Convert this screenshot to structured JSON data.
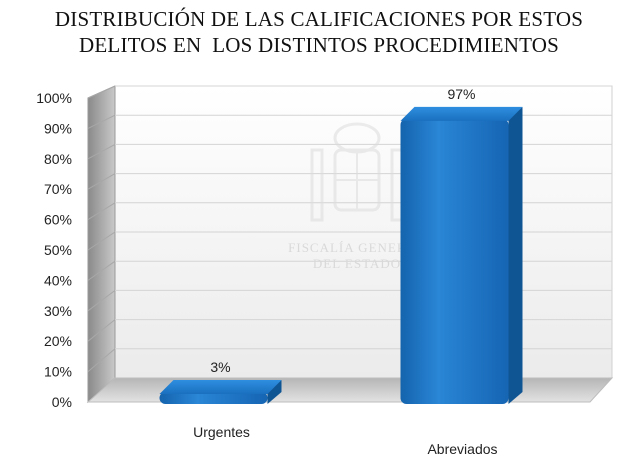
{
  "chart_data": {
    "type": "bar",
    "title_lines": [
      "DISTRIBUCIÓN DE LAS CALIFICACIONES POR ESTOS",
      "DELITOS EN  LOS DISTINTOS PROCEDIMIENTOS"
    ],
    "categories": [
      "Urgentes",
      "Abreviados"
    ],
    "values": [
      3,
      97
    ],
    "data_labels": [
      "3%",
      "97%"
    ],
    "ylim": [
      0,
      100
    ],
    "yticks": [
      0,
      10,
      20,
      30,
      40,
      50,
      60,
      70,
      80,
      90,
      100
    ],
    "ytick_labels": [
      "0%",
      "10%",
      "20%",
      "30%",
      "40%",
      "50%",
      "60%",
      "70%",
      "80%",
      "90%",
      "100%"
    ],
    "grid": true,
    "style": "3d-column",
    "bar_color": "#1f74c4",
    "watermark": [
      "FISCALÍA GENERAL",
      "DEL ESTADO"
    ]
  }
}
